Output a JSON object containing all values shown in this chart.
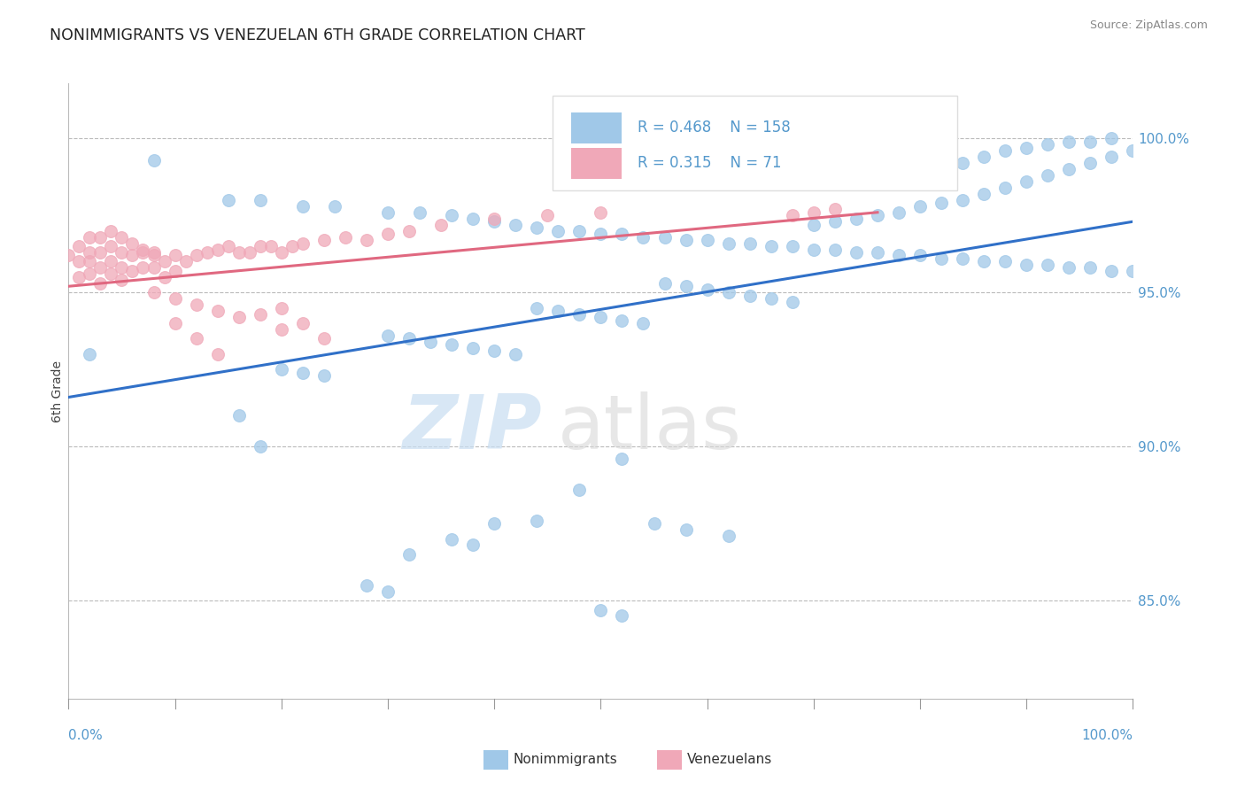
{
  "title": "NONIMMIGRANTS VS VENEZUELAN 6TH GRADE CORRELATION CHART",
  "source": "Source: ZipAtlas.com",
  "ylabel": "6th Grade",
  "yaxis_labels": [
    "85.0%",
    "90.0%",
    "95.0%",
    "100.0%"
  ],
  "yaxis_ticks": [
    0.85,
    0.9,
    0.95,
    1.0
  ],
  "xlim": [
    0.0,
    1.0
  ],
  "ylim": [
    0.818,
    1.018
  ],
  "blue_color": "#a0c8e8",
  "pink_color": "#f0a8b8",
  "blue_line_color": "#3070c8",
  "pink_line_color": "#e06880",
  "legend_R1": "0.468",
  "legend_N1": "158",
  "legend_R2": "0.315",
  "legend_N2": "71",
  "title_color": "#222222",
  "source_color": "#888888",
  "right_label_color": "#5599cc",
  "blue_scatter_x": [
    0.02,
    0.08,
    0.15,
    0.18,
    0.22,
    0.25,
    0.3,
    0.33,
    0.36,
    0.38,
    0.4,
    0.42,
    0.44,
    0.46,
    0.48,
    0.5,
    0.52,
    0.54,
    0.56,
    0.58,
    0.6,
    0.62,
    0.64,
    0.66,
    0.68,
    0.7,
    0.72,
    0.74,
    0.76,
    0.78,
    0.8,
    0.82,
    0.84,
    0.86,
    0.88,
    0.9,
    0.92,
    0.94,
    0.96,
    0.98,
    1.0,
    0.7,
    0.72,
    0.74,
    0.76,
    0.78,
    0.8,
    0.82,
    0.84,
    0.86,
    0.88,
    0.9,
    0.92,
    0.94,
    0.96,
    0.98,
    1.0,
    0.8,
    0.82,
    0.84,
    0.86,
    0.88,
    0.9,
    0.92,
    0.94,
    0.96,
    0.98,
    0.56,
    0.58,
    0.6,
    0.62,
    0.64,
    0.66,
    0.68,
    0.44,
    0.46,
    0.48,
    0.5,
    0.52,
    0.54,
    0.3,
    0.32,
    0.34,
    0.36,
    0.38,
    0.4,
    0.42,
    0.2,
    0.22,
    0.24,
    0.16,
    0.18,
    0.52,
    0.48,
    0.44,
    0.4,
    0.36,
    0.38,
    0.32,
    0.55,
    0.58,
    0.62,
    0.28,
    0.3,
    0.5,
    0.52
  ],
  "blue_scatter_y": [
    0.93,
    0.993,
    0.98,
    0.98,
    0.978,
    0.978,
    0.976,
    0.976,
    0.975,
    0.974,
    0.973,
    0.972,
    0.971,
    0.97,
    0.97,
    0.969,
    0.969,
    0.968,
    0.968,
    0.967,
    0.967,
    0.966,
    0.966,
    0.965,
    0.965,
    0.964,
    0.964,
    0.963,
    0.963,
    0.962,
    0.962,
    0.961,
    0.961,
    0.96,
    0.96,
    0.959,
    0.959,
    0.958,
    0.958,
    0.957,
    0.957,
    0.972,
    0.973,
    0.974,
    0.975,
    0.976,
    0.978,
    0.979,
    0.98,
    0.982,
    0.984,
    0.986,
    0.988,
    0.99,
    0.992,
    0.994,
    0.996,
    0.988,
    0.99,
    0.992,
    0.994,
    0.996,
    0.997,
    0.998,
    0.999,
    0.999,
    1.0,
    0.953,
    0.952,
    0.951,
    0.95,
    0.949,
    0.948,
    0.947,
    0.945,
    0.944,
    0.943,
    0.942,
    0.941,
    0.94,
    0.936,
    0.935,
    0.934,
    0.933,
    0.932,
    0.931,
    0.93,
    0.925,
    0.924,
    0.923,
    0.91,
    0.9,
    0.896,
    0.886,
    0.876,
    0.875,
    0.87,
    0.868,
    0.865,
    0.875,
    0.873,
    0.871,
    0.855,
    0.853,
    0.847,
    0.845
  ],
  "pink_scatter_x": [
    0.0,
    0.01,
    0.01,
    0.01,
    0.02,
    0.02,
    0.02,
    0.02,
    0.03,
    0.03,
    0.03,
    0.03,
    0.04,
    0.04,
    0.04,
    0.05,
    0.05,
    0.05,
    0.06,
    0.06,
    0.07,
    0.07,
    0.08,
    0.08,
    0.09,
    0.09,
    0.1,
    0.1,
    0.11,
    0.12,
    0.13,
    0.14,
    0.15,
    0.16,
    0.17,
    0.18,
    0.19,
    0.2,
    0.21,
    0.22,
    0.24,
    0.26,
    0.28,
    0.3,
    0.32,
    0.35,
    0.4,
    0.45,
    0.5,
    0.1,
    0.12,
    0.14,
    0.2,
    0.22,
    0.24,
    0.18,
    0.2,
    0.68,
    0.7,
    0.72,
    0.08,
    0.1,
    0.12,
    0.14,
    0.16,
    0.04,
    0.05,
    0.06,
    0.07,
    0.08
  ],
  "pink_scatter_y": [
    0.962,
    0.965,
    0.96,
    0.955,
    0.968,
    0.963,
    0.96,
    0.956,
    0.968,
    0.963,
    0.958,
    0.953,
    0.965,
    0.96,
    0.956,
    0.963,
    0.958,
    0.954,
    0.962,
    0.957,
    0.963,
    0.958,
    0.963,
    0.958,
    0.96,
    0.955,
    0.962,
    0.957,
    0.96,
    0.962,
    0.963,
    0.964,
    0.965,
    0.963,
    0.963,
    0.965,
    0.965,
    0.963,
    0.965,
    0.966,
    0.967,
    0.968,
    0.967,
    0.969,
    0.97,
    0.972,
    0.974,
    0.975,
    0.976,
    0.94,
    0.935,
    0.93,
    0.945,
    0.94,
    0.935,
    0.943,
    0.938,
    0.975,
    0.976,
    0.977,
    0.95,
    0.948,
    0.946,
    0.944,
    0.942,
    0.97,
    0.968,
    0.966,
    0.964,
    0.962
  ]
}
